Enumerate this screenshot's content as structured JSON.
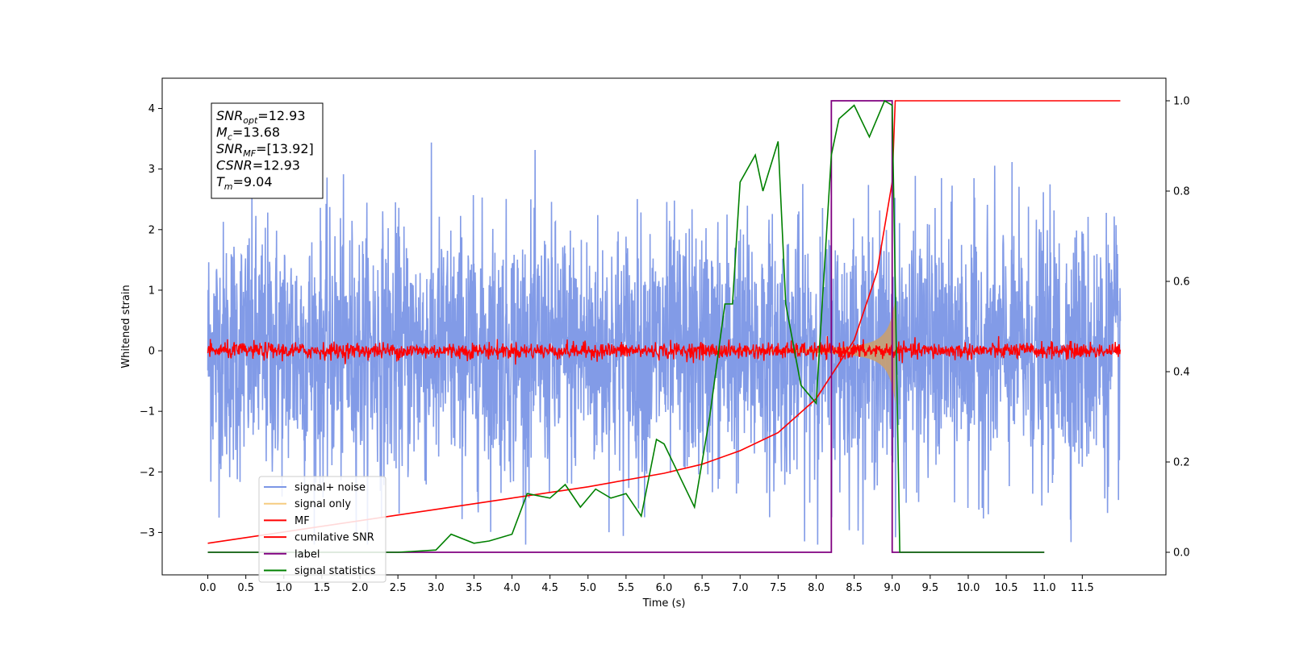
{
  "chart_data": {
    "type": "line",
    "xlabel": "Time (s)",
    "ylabel": "Whitened strain",
    "xlim": [
      -0.6,
      12.6
    ],
    "ylim": [
      -3.7,
      4.5
    ],
    "ylim_right": [
      -0.05,
      1.05
    ],
    "x_ticks": [
      "0.0",
      "0.5",
      "1.0",
      "1.5",
      "2.0",
      "2.5",
      "3.0",
      "3.5",
      "4.0",
      "4.5",
      "5.0",
      "5.5",
      "6.0",
      "6.5",
      "7.0",
      "7.5",
      "8.0",
      "8.5",
      "9.0",
      "9.5",
      "10.0",
      "10.5",
      "11.0",
      "11.5"
    ],
    "y_ticks": [
      "−3",
      "−2",
      "−1",
      "0",
      "1",
      "2",
      "3",
      "4"
    ],
    "y_ticks_right": [
      "0.0",
      "0.2",
      "0.4",
      "0.6",
      "0.8",
      "1.0"
    ],
    "legend_position": "lower-left",
    "annotation": {
      "lines": [
        {
          "sym": "SNR",
          "sub": "opt",
          "value": "=12.93"
        },
        {
          "sym": "M",
          "sub": "c",
          "value": "=13.68"
        },
        {
          "sym": "SNR",
          "sub": "MF",
          "value": "=[13.92]"
        },
        {
          "sym": "CSNR",
          "sub": "",
          "value": "=12.93"
        },
        {
          "sym": "T",
          "sub": "m",
          "value": "=9.04"
        }
      ]
    },
    "series": [
      {
        "name": "signal+ noise",
        "axis": "left",
        "color": "#7b96e6",
        "description_range": [
          -3.2,
          3.9
        ],
        "x_range": [
          0.0,
          12.0
        ]
      },
      {
        "name": "signal only",
        "axis": "left",
        "color": "#c8a070",
        "chirp_end": 9.04,
        "peak_amplitude": 0.9
      },
      {
        "name": "MF",
        "axis": "left",
        "color": "#ff0000",
        "x_range": [
          0.0,
          12.0
        ],
        "amplitude": 0.15
      },
      {
        "name": "cumilative SNR",
        "axis": "right",
        "color": "#ff0000",
        "x": [
          0.0,
          1.0,
          2.0,
          3.0,
          4.0,
          5.0,
          6.0,
          6.5,
          7.0,
          7.5,
          8.0,
          8.5,
          8.8,
          9.0,
          9.04,
          12.0
        ],
        "y": [
          0.02,
          0.045,
          0.07,
          0.095,
          0.12,
          0.145,
          0.175,
          0.195,
          0.225,
          0.265,
          0.34,
          0.47,
          0.62,
          0.82,
          1.0,
          1.0
        ]
      },
      {
        "name": "label",
        "axis": "right",
        "color": "#800080",
        "x": [
          0.0,
          8.2,
          8.2,
          9.0,
          9.0,
          11.0
        ],
        "y": [
          0.0,
          0.0,
          1.0,
          1.0,
          0.0,
          0.0
        ]
      },
      {
        "name": "signal statistics",
        "axis": "right",
        "color": "#008000",
        "x": [
          0.0,
          2.5,
          3.0,
          3.2,
          3.5,
          3.7,
          4.0,
          4.2,
          4.5,
          4.7,
          4.9,
          5.1,
          5.3,
          5.5,
          5.7,
          5.9,
          6.0,
          6.2,
          6.4,
          6.6,
          6.8,
          6.9,
          7.0,
          7.2,
          7.3,
          7.5,
          7.6,
          7.8,
          8.0,
          8.2,
          8.3,
          8.5,
          8.7,
          8.9,
          9.0,
          9.1,
          9.2,
          11.0
        ],
        "y": [
          0.0,
          0.0,
          0.005,
          0.04,
          0.02,
          0.025,
          0.04,
          0.13,
          0.12,
          0.15,
          0.1,
          0.14,
          0.12,
          0.13,
          0.08,
          0.25,
          0.24,
          0.17,
          0.1,
          0.3,
          0.55,
          0.55,
          0.82,
          0.88,
          0.8,
          0.91,
          0.55,
          0.37,
          0.33,
          0.88,
          0.96,
          0.99,
          0.92,
          1.0,
          0.99,
          0.0,
          0.0,
          0.0
        ]
      }
    ]
  }
}
